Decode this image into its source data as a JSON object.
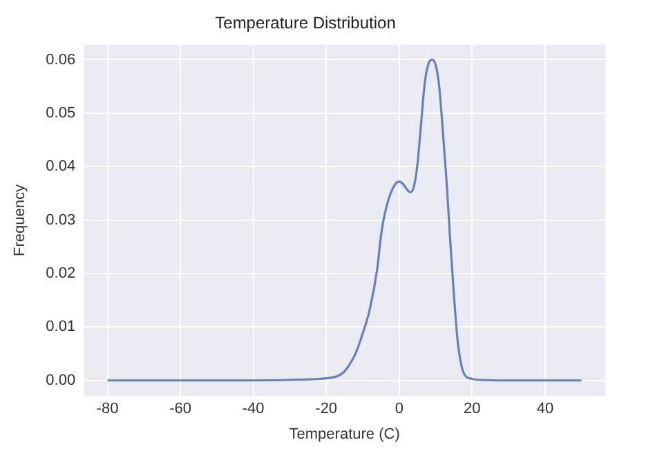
{
  "chart_data": {
    "type": "line",
    "title": "Temperature Distribution",
    "xlabel": "Temperature (C)",
    "ylabel": "Frequency",
    "x": [
      -80,
      -60,
      -40,
      -30,
      -20,
      -17,
      -15,
      -12,
      -10,
      -8,
      -6,
      -5,
      -4,
      -2,
      0,
      1,
      3,
      4,
      5,
      6,
      7,
      8,
      9,
      10,
      11,
      12,
      13,
      14,
      15,
      16,
      17,
      18,
      20,
      22,
      30,
      40,
      50
    ],
    "series": [
      {
        "color": "#6a80b3",
        "values": [
          0,
          0,
          0,
          0.0001,
          0.0004,
          0.0008,
          0.0017,
          0.005,
          0.0088,
          0.0135,
          0.021,
          0.027,
          0.031,
          0.0356,
          0.0372,
          0.0368,
          0.0352,
          0.0362,
          0.0404,
          0.048,
          0.0556,
          0.0592,
          0.06,
          0.059,
          0.0548,
          0.0463,
          0.0371,
          0.0261,
          0.016,
          0.0076,
          0.003,
          0.001,
          0.0003,
          0.0001,
          0,
          0,
          0
        ]
      }
    ],
    "xlim": [
      -86.5,
      56.5
    ],
    "ylim": [
      -0.0029,
      0.0628
    ],
    "xticks": [
      -80,
      -60,
      -40,
      -20,
      0,
      20,
      40
    ],
    "yticks": [
      {
        "value": 0,
        "label": "0.00"
      },
      {
        "value": 0.01,
        "label": "0.01"
      },
      {
        "value": 0.02,
        "label": "0.02"
      },
      {
        "value": 0.03,
        "label": "0.03"
      },
      {
        "value": 0.04,
        "label": "0.04"
      },
      {
        "value": 0.05,
        "label": "0.05"
      },
      {
        "value": 0.06,
        "label": "0.06"
      }
    ],
    "grid": true,
    "legend": false,
    "marker": "none",
    "line_style": "solid"
  }
}
